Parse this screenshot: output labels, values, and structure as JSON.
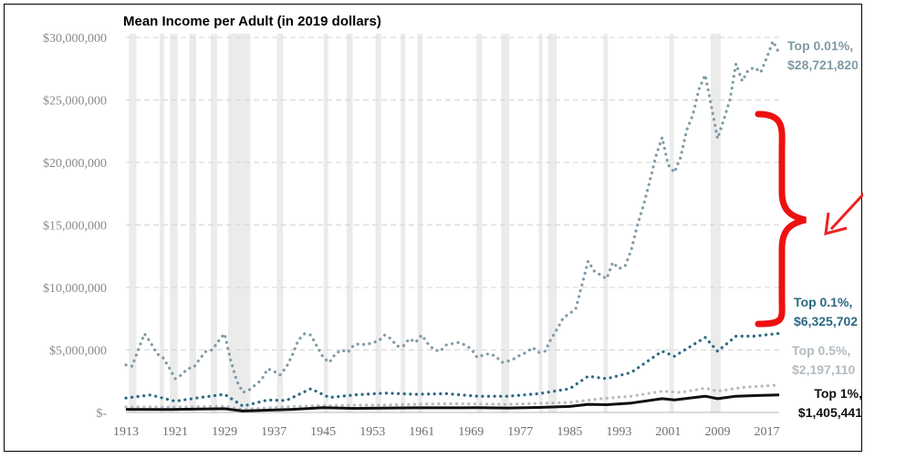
{
  "chart_data": {
    "type": "line",
    "title": "Mean Income per Adult (in 2019 dollars)",
    "xlabel": "",
    "ylabel": "",
    "ylim": [
      0,
      30000000
    ],
    "xlim": [
      1913,
      2019
    ],
    "y_ticks": [
      {
        "value": 0,
        "label": "$-"
      },
      {
        "value": 5000000,
        "label": "$5,000,000"
      },
      {
        "value": 10000000,
        "label": "$10,000,000"
      },
      {
        "value": 15000000,
        "label": "$15,000,000"
      },
      {
        "value": 20000000,
        "label": "$20,000,000"
      },
      {
        "value": 25000000,
        "label": "$25,000,000"
      },
      {
        "value": 30000000,
        "label": "$30,000,000"
      }
    ],
    "x_ticks": [
      1913,
      1921,
      1929,
      1937,
      1945,
      1953,
      1961,
      1969,
      1977,
      1985,
      1993,
      2001,
      2009,
      2017
    ],
    "grid": "horizontal dashed",
    "recession_bands": [
      [
        1913.5,
        1914.7
      ],
      [
        1918.5,
        1919.2
      ],
      [
        1920.1,
        1921.4
      ],
      [
        1923.3,
        1924.4
      ],
      [
        1926.8,
        1927.8
      ],
      [
        1929.6,
        1933.2
      ],
      [
        1937.5,
        1938.5
      ],
      [
        1945.1,
        1945.8
      ],
      [
        1948.8,
        1949.8
      ],
      [
        1953.5,
        1954.4
      ],
      [
        1957.6,
        1958.3
      ],
      [
        1960.3,
        1961.1
      ],
      [
        1969.9,
        1970.8
      ],
      [
        1973.9,
        1975.2
      ],
      [
        1980.0,
        1980.6
      ],
      [
        1981.5,
        1982.9
      ],
      [
        1990.5,
        1991.2
      ],
      [
        2001.2,
        2001.9
      ],
      [
        2007.9,
        2009.5
      ]
    ],
    "series": [
      {
        "name": "Top 0.01%",
        "end_value": "$28,721,820",
        "color": "#7f9aa6",
        "style": "dotted",
        "points": [
          [
            1913,
            3800000
          ],
          [
            1914,
            3700000
          ],
          [
            1915,
            5000000
          ],
          [
            1916,
            6300000
          ],
          [
            1917,
            5600000
          ],
          [
            1918,
            4700000
          ],
          [
            1919,
            4400000
          ],
          [
            1920,
            3600000
          ],
          [
            1921,
            2700000
          ],
          [
            1922,
            3000000
          ],
          [
            1923,
            3500000
          ],
          [
            1924,
            3600000
          ],
          [
            1925,
            4300000
          ],
          [
            1926,
            4900000
          ],
          [
            1927,
            5000000
          ],
          [
            1928,
            5700000
          ],
          [
            1929,
            6300000
          ],
          [
            1930,
            4200000
          ],
          [
            1931,
            2500000
          ],
          [
            1932,
            1600000
          ],
          [
            1933,
            1800000
          ],
          [
            1934,
            2200000
          ],
          [
            1935,
            2600000
          ],
          [
            1936,
            3500000
          ],
          [
            1937,
            3300000
          ],
          [
            1938,
            3000000
          ],
          [
            1939,
            3600000
          ],
          [
            1940,
            4600000
          ],
          [
            1941,
            5800000
          ],
          [
            1942,
            6300000
          ],
          [
            1943,
            6200000
          ],
          [
            1944,
            5300000
          ],
          [
            1945,
            4400000
          ],
          [
            1946,
            4000000
          ],
          [
            1947,
            4700000
          ],
          [
            1948,
            5000000
          ],
          [
            1949,
            4800000
          ],
          [
            1950,
            5400000
          ],
          [
            1951,
            5500000
          ],
          [
            1952,
            5400000
          ],
          [
            1953,
            5600000
          ],
          [
            1954,
            5700000
          ],
          [
            1955,
            6200000
          ],
          [
            1956,
            5900000
          ],
          [
            1957,
            5300000
          ],
          [
            1958,
            5300000
          ],
          [
            1959,
            5900000
          ],
          [
            1960,
            5600000
          ],
          [
            1961,
            6200000
          ],
          [
            1962,
            5500000
          ],
          [
            1963,
            5000000
          ],
          [
            1964,
            4900000
          ],
          [
            1965,
            5400000
          ],
          [
            1966,
            5500000
          ],
          [
            1967,
            5600000
          ],
          [
            1968,
            5400000
          ],
          [
            1969,
            5100000
          ],
          [
            1970,
            4400000
          ],
          [
            1971,
            4600000
          ],
          [
            1972,
            4700000
          ],
          [
            1973,
            4500000
          ],
          [
            1974,
            4000000
          ],
          [
            1975,
            4100000
          ],
          [
            1976,
            4300000
          ],
          [
            1977,
            4600000
          ],
          [
            1978,
            4800000
          ],
          [
            1979,
            5200000
          ],
          [
            1980,
            4800000
          ],
          [
            1981,
            4900000
          ],
          [
            1982,
            5900000
          ],
          [
            1983,
            6700000
          ],
          [
            1984,
            7600000
          ],
          [
            1985,
            7900000
          ],
          [
            1986,
            8300000
          ],
          [
            1987,
            10200000
          ],
          [
            1988,
            12100000
          ],
          [
            1989,
            11300000
          ],
          [
            1990,
            11000000
          ],
          [
            1991,
            10700000
          ],
          [
            1992,
            12000000
          ],
          [
            1993,
            11500000
          ],
          [
            1994,
            11700000
          ],
          [
            1995,
            13000000
          ],
          [
            1996,
            15000000
          ],
          [
            1997,
            16600000
          ],
          [
            1998,
            18500000
          ],
          [
            1999,
            20500000
          ],
          [
            2000,
            22000000
          ],
          [
            2001,
            19800000
          ],
          [
            2002,
            19200000
          ],
          [
            2003,
            20400000
          ],
          [
            2004,
            22600000
          ],
          [
            2005,
            23800000
          ],
          [
            2006,
            25900000
          ],
          [
            2007,
            27000000
          ],
          [
            2008,
            24500000
          ],
          [
            2009,
            21900000
          ],
          [
            2010,
            23400000
          ],
          [
            2011,
            25000000
          ],
          [
            2012,
            27900000
          ],
          [
            2013,
            26500000
          ],
          [
            2014,
            27400000
          ],
          [
            2015,
            27600000
          ],
          [
            2016,
            27200000
          ],
          [
            2017,
            28400000
          ],
          [
            2018,
            29700000
          ],
          [
            2019,
            28721820
          ]
        ]
      },
      {
        "name": "Top 0.1%",
        "end_value": "$6,325,702",
        "color": "#2c6a83",
        "style": "dotted",
        "points": [
          [
            1913,
            1150000
          ],
          [
            1917,
            1400000
          ],
          [
            1921,
            900000
          ],
          [
            1925,
            1200000
          ],
          [
            1929,
            1450000
          ],
          [
            1932,
            500000
          ],
          [
            1936,
            1000000
          ],
          [
            1939,
            950000
          ],
          [
            1943,
            1900000
          ],
          [
            1946,
            1200000
          ],
          [
            1950,
            1400000
          ],
          [
            1955,
            1550000
          ],
          [
            1960,
            1450000
          ],
          [
            1965,
            1500000
          ],
          [
            1970,
            1300000
          ],
          [
            1975,
            1300000
          ],
          [
            1980,
            1500000
          ],
          [
            1985,
            1900000
          ],
          [
            1988,
            2900000
          ],
          [
            1991,
            2700000
          ],
          [
            1995,
            3200000
          ],
          [
            2000,
            4900000
          ],
          [
            2002,
            4500000
          ],
          [
            2006,
            5700000
          ],
          [
            2007,
            6000000
          ],
          [
            2009,
            4900000
          ],
          [
            2012,
            6100000
          ],
          [
            2015,
            6100000
          ],
          [
            2019,
            6325702
          ]
        ]
      },
      {
        "name": "Top 0.5%",
        "end_value": "$2,197,110",
        "color": "#b3bcc1",
        "style": "dotted",
        "points": [
          [
            1913,
            450000
          ],
          [
            1920,
            430000
          ],
          [
            1929,
            500000
          ],
          [
            1932,
            250000
          ],
          [
            1940,
            480000
          ],
          [
            1945,
            550000
          ],
          [
            1955,
            600000
          ],
          [
            1965,
            700000
          ],
          [
            1975,
            650000
          ],
          [
            1985,
            800000
          ],
          [
            1990,
            1100000
          ],
          [
            1995,
            1300000
          ],
          [
            2000,
            1700000
          ],
          [
            2003,
            1600000
          ],
          [
            2007,
            1950000
          ],
          [
            2009,
            1700000
          ],
          [
            2013,
            2000000
          ],
          [
            2019,
            2197110
          ]
        ]
      },
      {
        "name": "Top 1%",
        "end_value": "$1,405,441",
        "color": "#111111",
        "style": "solid",
        "points": [
          [
            1913,
            250000
          ],
          [
            1920,
            230000
          ],
          [
            1929,
            300000
          ],
          [
            1932,
            120000
          ],
          [
            1940,
            250000
          ],
          [
            1945,
            380000
          ],
          [
            1950,
            330000
          ],
          [
            1960,
            370000
          ],
          [
            1970,
            380000
          ],
          [
            1975,
            360000
          ],
          [
            1980,
            400000
          ],
          [
            1985,
            480000
          ],
          [
            1988,
            650000
          ],
          [
            1991,
            620000
          ],
          [
            1995,
            750000
          ],
          [
            2000,
            1100000
          ],
          [
            2002,
            1000000
          ],
          [
            2007,
            1300000
          ],
          [
            2009,
            1100000
          ],
          [
            2012,
            1300000
          ],
          [
            2015,
            1350000
          ],
          [
            2019,
            1405441
          ]
        ]
      }
    ],
    "annotations": [
      "curly-brace",
      "arrow"
    ],
    "brace_color": "#ee1111",
    "arrow_color": "#ee2222"
  }
}
